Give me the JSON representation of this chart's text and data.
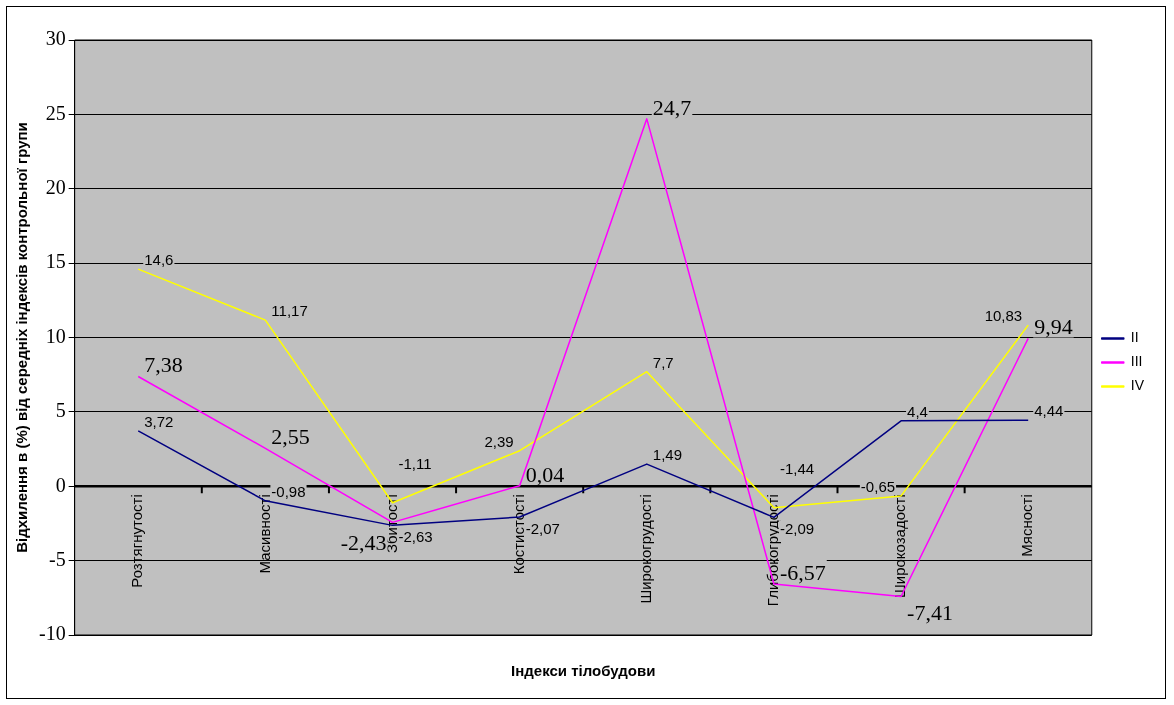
{
  "chart_data": {
    "type": "line",
    "xlabel": "Індекси тілобудови",
    "ylabel": "Відхилення в (%) від середніх індексів контрольної групи",
    "categories": [
      "Розтягнутості",
      "Масивності",
      "Збитості",
      "Костистості",
      "Широкогрудості",
      "Глибокогрудості",
      "Широкозадості",
      "Мясності"
    ],
    "series": [
      {
        "name": "II",
        "color": "#000080",
        "values": [
          3.72,
          -0.98,
          -2.63,
          -2.07,
          1.49,
          -2.09,
          4.4,
          4.44
        ],
        "value_labels": [
          "3,72",
          "-0,98",
          "-2,63",
          "-2,07",
          "1,49",
          "-2,09",
          "4,4",
          "4,44"
        ]
      },
      {
        "name": "III",
        "color": "#ff00ff",
        "values": [
          7.38,
          2.55,
          -2.43,
          0.04,
          24.7,
          -6.57,
          -7.41,
          9.94
        ],
        "value_labels": [
          "7,38",
          "2,55",
          "-2,43",
          "0,04",
          "24,7",
          "-6,57",
          "-7,41",
          "9,94"
        ]
      },
      {
        "name": "IV",
        "color": "#ffff00",
        "values": [
          14.6,
          11.17,
          -1.11,
          2.39,
          7.7,
          -1.44,
          -0.65,
          10.83
        ],
        "value_labels": [
          "14,6",
          "11,17",
          "-1,11",
          "2,39",
          "7,7",
          "-1,44",
          "-0,65",
          "10,83"
        ]
      }
    ],
    "ylim": [
      -10,
      30
    ],
    "yticks": [
      -10,
      -5,
      0,
      5,
      10,
      15,
      20,
      25,
      30
    ],
    "grid": "y",
    "legend": "right",
    "marker": "none",
    "line_style": "solid"
  }
}
